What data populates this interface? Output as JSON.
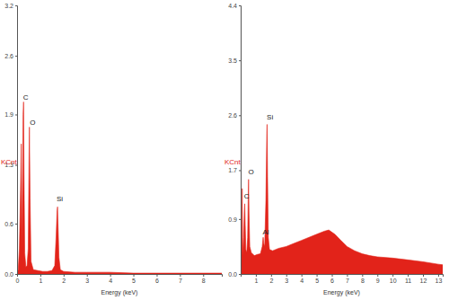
{
  "chart_data": [
    {
      "type": "area",
      "color": "#e2231a",
      "ylabel": "KCnt",
      "xlabel": "Energy (keV)",
      "xlim": [
        0,
        8.8
      ],
      "xticks": [
        0,
        1,
        2,
        3,
        4,
        5,
        6,
        7,
        8
      ],
      "ylim": [
        0,
        3.2
      ],
      "yticks": [
        {
          "value": 0,
          "label": "0.0"
        },
        0.6,
        1.3,
        1.9,
        2.6,
        3.2
      ],
      "x": [
        0,
        0.05,
        0.1,
        0.15,
        0.18,
        0.21,
        0.24,
        0.26,
        0.28,
        0.3,
        0.33,
        0.38,
        0.43,
        0.48,
        0.51,
        0.53,
        0.56,
        0.6,
        0.7,
        0.9,
        1.1,
        1.3,
        1.5,
        1.62,
        1.68,
        1.72,
        1.74,
        1.76,
        1.8,
        1.86,
        2.0,
        2.5,
        3,
        4,
        5,
        6,
        7,
        8,
        8.8
      ],
      "values": [
        0,
        0.05,
        0.3,
        1.0,
        1.55,
        0.3,
        1.2,
        1.9,
        2.05,
        1.2,
        0.25,
        0.08,
        0.1,
        0.3,
        1.2,
        1.75,
        0.9,
        0.15,
        0.05,
        0.04,
        0.03,
        0.03,
        0.04,
        0.1,
        0.45,
        0.75,
        0.8,
        0.6,
        0.2,
        0.05,
        0.03,
        0.02,
        0.02,
        0.02,
        0.01,
        0.01,
        0.01,
        0.01,
        0.01
      ],
      "annotations": [
        {
          "text": "C",
          "x": 0.26,
          "y": 2.05
        },
        {
          "text": "O",
          "x": 0.55,
          "y": 1.75
        },
        {
          "text": "Si",
          "x": 1.7,
          "y": 0.85
        }
      ]
    },
    {
      "type": "area",
      "color": "#e2231a",
      "ylabel": "KCnt",
      "xlabel": "Energy (keV)",
      "xlim": [
        0,
        13.3
      ],
      "xticks": [
        1,
        2,
        3,
        4,
        5,
        6,
        7,
        8,
        9,
        10,
        11,
        12,
        13
      ],
      "ylim": [
        0,
        4.4
      ],
      "yticks": [
        {
          "value": 0,
          "label": "0.0"
        },
        0.9,
        1.7,
        2.6,
        3.5,
        4.4
      ],
      "x": [
        0,
        0.05,
        0.1,
        0.13,
        0.16,
        0.2,
        0.24,
        0.27,
        0.3,
        0.34,
        0.4,
        0.46,
        0.5,
        0.52,
        0.55,
        0.6,
        0.7,
        0.9,
        1.1,
        1.3,
        1.42,
        1.48,
        1.52,
        1.58,
        1.66,
        1.72,
        1.74,
        1.77,
        1.82,
        1.9,
        2.1,
        2.5,
        3,
        3.5,
        4,
        4.5,
        5,
        5.5,
        5.8,
        6.2,
        6.6,
        7,
        7.5,
        8,
        8.5,
        9,
        10,
        11,
        12,
        13,
        13.3
      ],
      "values": [
        0,
        0.2,
        1.4,
        0.6,
        0.3,
        0.6,
        1.0,
        1.15,
        0.8,
        0.4,
        0.35,
        0.6,
        1.3,
        1.55,
        1.0,
        0.45,
        0.35,
        0.3,
        0.32,
        0.33,
        0.45,
        0.6,
        0.5,
        0.45,
        1.2,
        2.3,
        2.45,
        1.6,
        0.6,
        0.4,
        0.38,
        0.42,
        0.45,
        0.5,
        0.55,
        0.6,
        0.65,
        0.7,
        0.72,
        0.65,
        0.55,
        0.45,
        0.38,
        0.33,
        0.3,
        0.28,
        0.26,
        0.23,
        0.2,
        0.16,
        0.15
      ],
      "annotations": [
        {
          "text": "C",
          "x": 0.22,
          "y": 1.2
        },
        {
          "text": "O",
          "x": 0.5,
          "y": 1.6
        },
        {
          "text": "Al",
          "x": 1.45,
          "y": 0.62
        },
        {
          "text": "Si",
          "x": 1.72,
          "y": 2.5
        }
      ]
    }
  ]
}
